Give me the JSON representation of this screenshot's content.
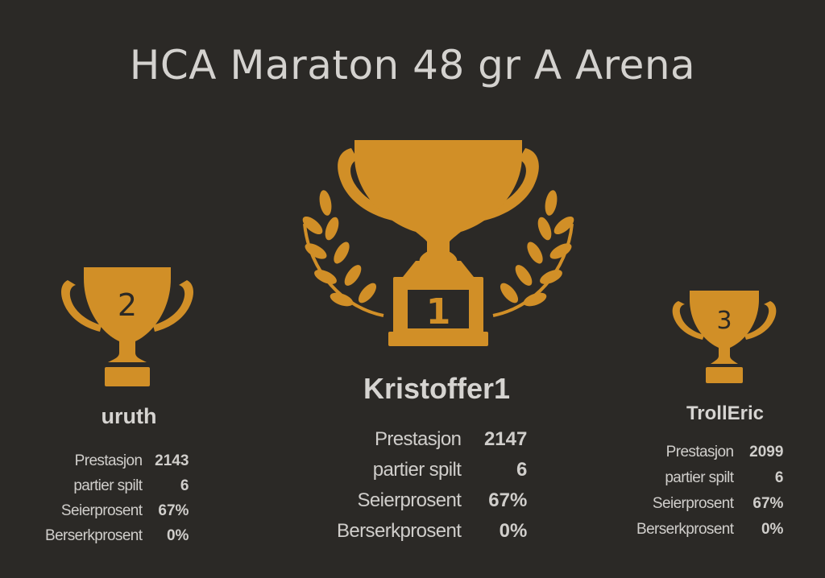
{
  "title": "HCA Maraton 48 gr A Arena",
  "colors": {
    "background": "#2b2926",
    "trophy": "#d18f27",
    "text": "#d0cecb"
  },
  "podium": {
    "first": {
      "rank": "1",
      "name": "Kristoffer1",
      "stats": [
        {
          "label": "Prestasjon",
          "value": "2147"
        },
        {
          "label": "partier spilt",
          "value": "6"
        },
        {
          "label": "Seierprosent",
          "value": "67%"
        },
        {
          "label": "Berserkprosent",
          "value": "0%"
        }
      ]
    },
    "second": {
      "rank": "2",
      "name": "uruth",
      "stats": [
        {
          "label": "Prestasjon",
          "value": "2143"
        },
        {
          "label": "partier spilt",
          "value": "6"
        },
        {
          "label": "Seierprosent",
          "value": "67%"
        },
        {
          "label": "Berserkprosent",
          "value": "0%"
        }
      ]
    },
    "third": {
      "rank": "3",
      "name": "TrollEric",
      "stats": [
        {
          "label": "Prestasjon",
          "value": "2099"
        },
        {
          "label": "partier spilt",
          "value": "6"
        },
        {
          "label": "Seierprosent",
          "value": "67%"
        },
        {
          "label": "Berserkprosent",
          "value": "0%"
        }
      ]
    }
  }
}
